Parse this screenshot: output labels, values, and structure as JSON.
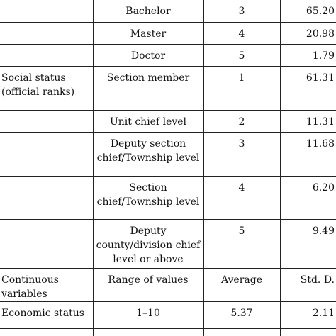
{
  "rows": [
    {
      "c0": [
        ""
      ],
      "c1": [
        "Bachelor"
      ],
      "c2": "3",
      "c3": "65.20"
    },
    {
      "c0": [
        ""
      ],
      "c1": [
        "Master"
      ],
      "c2": "4",
      "c3": "20.98"
    },
    {
      "c0": [
        ""
      ],
      "c1": [
        "Doctor"
      ],
      "c2": "5",
      "c3": "1.79"
    },
    {
      "c0": [
        "Social status",
        "(official ranks)"
      ],
      "c1": [
        "Section member"
      ],
      "c2": "1",
      "c3": "61.31"
    },
    {
      "c0": [
        ""
      ],
      "c1": [
        "Unit chief level"
      ],
      "c2": "2",
      "c3": "11.31"
    },
    {
      "c0": [
        ""
      ],
      "c1": [
        "Deputy section",
        "chief/Township level"
      ],
      "c2": "3",
      "c3": "11.68"
    },
    {
      "c0": [
        ""
      ],
      "c1": [
        "Section",
        "chief/Township level"
      ],
      "c2": "4",
      "c3": "6.20"
    },
    {
      "c0": [
        ""
      ],
      "c1": [
        "Deputy",
        "county/division chief",
        "level or above"
      ],
      "c2": "5",
      "c3": "9.49"
    },
    {
      "c0": [
        "Continuous",
        "variables"
      ],
      "c1": [
        "Range of values"
      ],
      "c2": "Average",
      "c3": "Std. D."
    },
    {
      "c0": [
        "Economic status"
      ],
      "c1": [
        "1–10"
      ],
      "c2": "5.37",
      "c3": "2.11"
    },
    {
      "c0": [
        ""
      ],
      "c1": [
        ""
      ],
      "c2": "",
      "c3": ""
    }
  ],
  "colors": {
    "line": "#222222",
    "text": "#111111",
    "background": "#ffffff"
  }
}
